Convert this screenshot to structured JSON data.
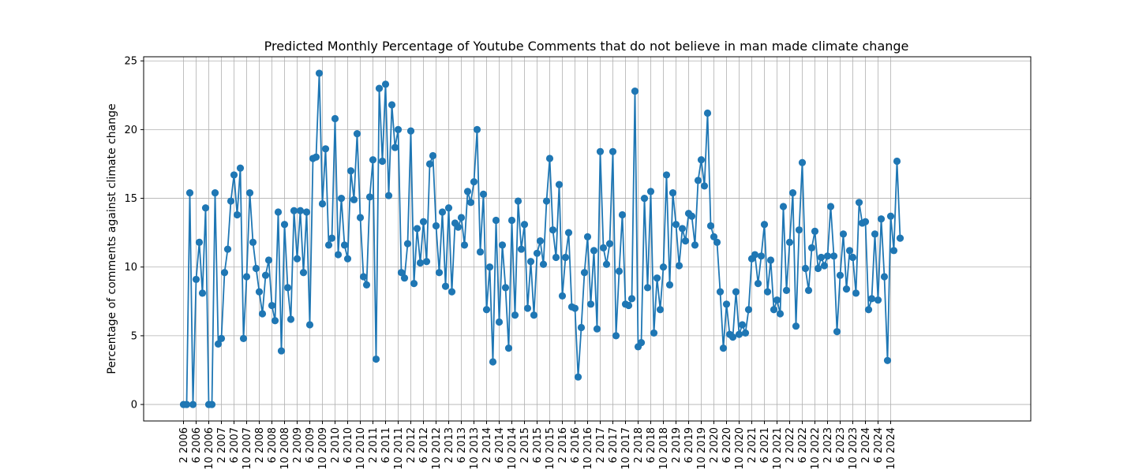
{
  "chart_data": {
    "type": "line",
    "title": "Predicted Monthly Percentage of Youtube Comments that do not believe in man made climate change",
    "xlabel": "",
    "ylabel": "Percentage of comments against climate change",
    "ylim": [
      -1.2,
      25.3
    ],
    "yticks": [
      0,
      5,
      10,
      15,
      20,
      25
    ],
    "grid": true,
    "colors": {
      "line": "#1f77b4",
      "grid": "#b0b0b0",
      "axis": "#000000"
    },
    "x_tick_labels": [
      "2 2006",
      "6 2006",
      "10 2006",
      "2 2007",
      "6 2007",
      "10 2007",
      "2 2008",
      "6 2008",
      "10 2008",
      "2 2009",
      "6 2009",
      "10 2009",
      "2 2010",
      "6 2010",
      "10 2010",
      "2 2011",
      "6 2011",
      "10 2011",
      "2 2012",
      "6 2012",
      "10 2012",
      "2 2013",
      "6 2013",
      "10 2013",
      "2 2014",
      "6 2014",
      "10 2014",
      "2 2015",
      "6 2015",
      "10 2015",
      "2 2016",
      "6 2016",
      "10 2016",
      "2 2017",
      "6 2017",
      "10 2017",
      "2 2018",
      "6 2018",
      "10 2018",
      "2 2019",
      "6 2019",
      "10 2019",
      "2 2020",
      "6 2020",
      "10 2020",
      "2 2021",
      "6 2021",
      "10 2021",
      "2 2022",
      "6 2022",
      "10 2022",
      "2 2023",
      "6 2023",
      "10 2023",
      "2 2024",
      "6 2024",
      "10 2024"
    ],
    "start": "2 2006",
    "values": [
      0.0,
      0.0,
      15.4,
      0.0,
      9.1,
      11.8,
      8.1,
      14.3,
      0.0,
      0.0,
      15.4,
      4.4,
      4.8,
      9.6,
      11.3,
      14.8,
      16.7,
      13.8,
      17.2,
      4.8,
      9.3,
      15.4,
      11.8,
      9.9,
      8.2,
      6.6,
      9.4,
      10.5,
      7.2,
      6.1,
      14.0,
      3.9,
      13.1,
      8.5,
      6.2,
      14.1,
      10.6,
      14.1,
      9.6,
      14.0,
      5.8,
      17.9,
      18.0,
      24.1,
      14.6,
      18.6,
      11.6,
      12.1,
      20.8,
      10.9,
      15.0,
      11.6,
      10.6,
      17.0,
      14.9,
      19.7,
      13.6,
      9.3,
      8.7,
      15.1,
      17.8,
      3.3,
      23.0,
      17.7,
      23.3,
      15.2,
      21.8,
      18.7,
      20.0,
      9.6,
      9.2,
      11.7,
      19.9,
      8.8,
      12.8,
      10.3,
      13.3,
      10.4,
      17.5,
      18.1,
      13.0,
      9.6,
      14.0,
      8.6,
      14.3,
      8.2,
      13.2,
      12.9,
      13.6,
      11.6,
      15.5,
      14.7,
      16.2,
      20.0,
      11.1,
      15.3,
      6.9,
      10.0,
      3.1,
      13.4,
      6.0,
      11.6,
      8.5,
      4.1,
      13.4,
      6.5,
      14.8,
      11.3,
      13.1,
      7.0,
      10.4,
      6.5,
      11.0,
      11.9,
      10.2,
      14.8,
      17.9,
      12.7,
      10.7,
      16.0,
      7.9,
      10.7,
      12.5,
      7.1,
      7.0,
      2.0,
      5.6,
      9.6,
      12.2,
      7.3,
      11.2,
      5.5,
      18.4,
      11.4,
      10.2,
      11.7,
      18.4,
      5.0,
      9.7,
      13.8,
      7.3,
      7.2,
      7.7,
      22.8,
      4.2,
      4.5,
      15.0,
      8.5,
      15.5,
      5.2,
      9.2,
      6.9,
      10.0,
      16.7,
      8.7,
      15.4,
      13.1,
      10.1,
      12.8,
      11.9,
      13.9,
      13.7,
      11.6,
      16.3,
      17.8,
      15.9,
      21.2,
      13.0,
      12.2,
      11.8,
      8.2,
      4.1,
      7.3,
      5.1,
      4.9,
      8.2,
      5.1,
      5.8,
      5.2,
      6.9,
      10.6,
      10.9,
      8.8,
      10.8,
      13.1,
      8.2,
      10.5,
      6.9,
      7.6,
      6.6,
      14.4,
      8.3,
      11.8,
      15.4,
      5.7,
      12.7,
      17.6,
      9.9,
      8.3,
      11.4,
      12.6,
      9.9,
      10.7,
      10.1,
      10.8,
      14.4,
      10.8,
      5.3,
      9.4,
      12.4,
      8.4,
      11.2,
      10.7,
      8.1,
      14.7,
      13.2,
      13.3,
      6.9,
      7.7,
      12.4,
      7.6,
      13.5,
      9.3,
      3.2,
      13.7,
      11.2,
      17.7,
      12.1
    ]
  }
}
